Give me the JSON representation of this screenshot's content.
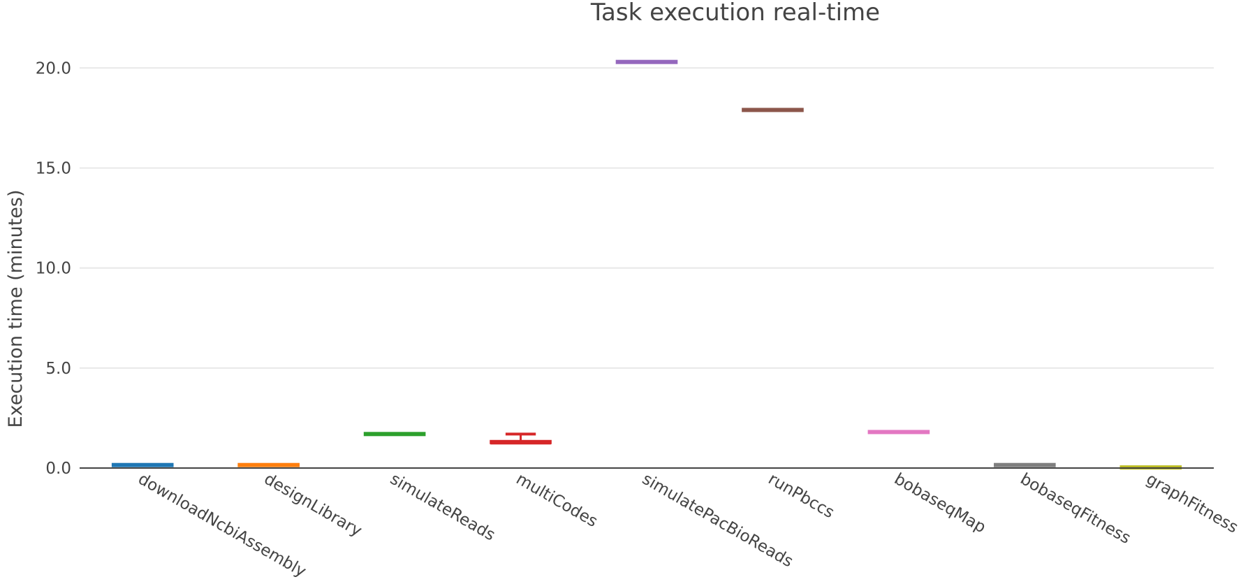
{
  "chart_data": {
    "type": "box",
    "title": "Task execution real-time",
    "xlabel": "",
    "ylabel": "Execution time (minutes)",
    "ylim": [
      0,
      22
    ],
    "yticks": [
      0,
      5,
      10,
      15,
      20
    ],
    "ytick_labels": [
      "0.0",
      "5.0",
      "10.0",
      "15.0",
      "20.0"
    ],
    "grid": true,
    "categories": [
      "downloadNcbiAssembly",
      "designLibrary",
      "simulateReads",
      "multiCodes",
      "simulatePacBioReads",
      "runPbccs",
      "bobaseqMap",
      "bobaseqFitness",
      "graphFitness"
    ],
    "series": [
      {
        "category": "downloadNcbiAssembly",
        "color": "#1f77b4",
        "min": 0.15,
        "q1": 0.15,
        "median": 0.15,
        "q3": 0.15,
        "max": 0.15
      },
      {
        "category": "designLibrary",
        "color": "#ff7f0e",
        "min": 0.15,
        "q1": 0.15,
        "median": 0.15,
        "q3": 0.15,
        "max": 0.15
      },
      {
        "category": "simulateReads",
        "color": "#2ca02c",
        "min": 1.7,
        "q1": 1.7,
        "median": 1.7,
        "q3": 1.7,
        "max": 1.7
      },
      {
        "category": "multiCodes",
        "color": "#d62728",
        "min": 1.2,
        "q1": 1.2,
        "median": 1.25,
        "q3": 1.3,
        "max": 1.7
      },
      {
        "category": "simulatePacBioReads",
        "color": "#9467bd",
        "min": 20.3,
        "q1": 20.3,
        "median": 20.3,
        "q3": 20.3,
        "max": 20.3
      },
      {
        "category": "runPbccs",
        "color": "#8c564b",
        "min": 17.9,
        "q1": 17.9,
        "median": 17.9,
        "q3": 17.9,
        "max": 17.9
      },
      {
        "category": "bobaseqMap",
        "color": "#e377c2",
        "min": 1.8,
        "q1": 1.8,
        "median": 1.8,
        "q3": 1.8,
        "max": 1.8
      },
      {
        "category": "bobaseqFitness",
        "color": "#7f7f7f",
        "min": 0.15,
        "q1": 0.15,
        "median": 0.15,
        "q3": 0.15,
        "max": 0.15
      },
      {
        "category": "graphFitness",
        "color": "#bcbd22",
        "min": 0.03,
        "q1": 0.03,
        "median": 0.03,
        "q3": 0.03,
        "max": 0.03
      }
    ]
  }
}
